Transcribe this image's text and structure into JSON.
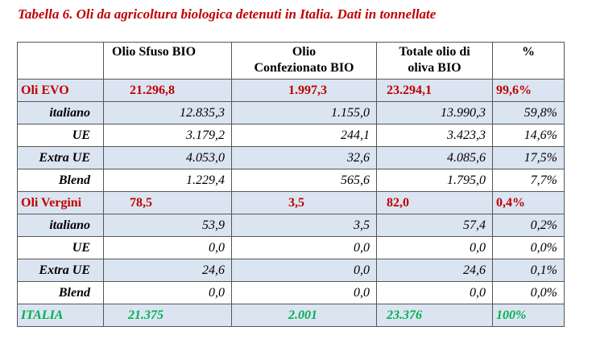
{
  "title": "Tabella 6. Oli da agricoltura biologica detenuti in Italia. Dati in tonnellate",
  "headers": [
    "",
    "Olio Sfuso BIO",
    "Olio\nConfezionato BIO",
    "Totale olio di\noliva BIO",
    "%"
  ],
  "rows": [
    {
      "type": "sum",
      "cells": [
        "Oli EVO",
        "21.296,8",
        "1.997,3",
        "23.294,1",
        "99,6%"
      ]
    },
    {
      "type": "sub",
      "cells": [
        "italiano",
        "12.835,3",
        "1.155,0",
        "13.990,3",
        "59,8%"
      ]
    },
    {
      "type": "sub",
      "cells": [
        "UE",
        "3.179,2",
        "244,1",
        "3.423,3",
        "14,6%"
      ]
    },
    {
      "type": "sub",
      "cells": [
        "Extra UE",
        "4.053,0",
        "32,6",
        "4.085,6",
        "17,5%"
      ]
    },
    {
      "type": "sub",
      "cells": [
        "Blend",
        "1.229,4",
        "565,6",
        "1.795,0",
        "7,7%"
      ]
    },
    {
      "type": "sum",
      "cells": [
        "Oli Vergini",
        "78,5",
        "3,5",
        "82,0",
        "0,4%"
      ]
    },
    {
      "type": "sub",
      "cells": [
        "italiano",
        "53,9",
        "3,5",
        "57,4",
        "0,2%"
      ]
    },
    {
      "type": "sub",
      "cells": [
        "UE",
        "0,0",
        "0,0",
        "0,0",
        "0,0%"
      ]
    },
    {
      "type": "sub",
      "cells": [
        "Extra UE",
        "24,6",
        "0,0",
        "24,6",
        "0,1%"
      ]
    },
    {
      "type": "sub",
      "cells": [
        "Blend",
        "0,0",
        "0,0",
        "0,0",
        "0,0%"
      ]
    },
    {
      "type": "total",
      "cells": [
        "ITALIA",
        "21.375",
        "2.001",
        "23.376",
        "100%"
      ]
    }
  ]
}
